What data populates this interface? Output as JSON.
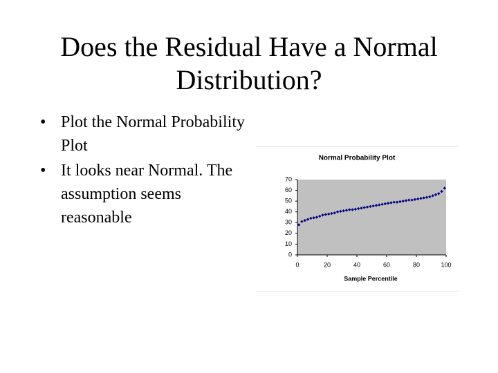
{
  "slide": {
    "title": "Does the Residual Have a Normal Distribution?",
    "bullets": [
      "Plot the Normal Probability Plot",
      "It looks near Normal. The assumption seems reasonable"
    ]
  },
  "chart_data": {
    "type": "scatter",
    "title": "Normal Probability Plot",
    "x_label": "Sample Percentile",
    "x": [
      1,
      3,
      5,
      7,
      9,
      11,
      13,
      15,
      17,
      19,
      21,
      23,
      25,
      27,
      29,
      31,
      33,
      35,
      37,
      39,
      41,
      43,
      45,
      47,
      49,
      51,
      53,
      55,
      57,
      59,
      61,
      63,
      65,
      67,
      69,
      71,
      73,
      75,
      77,
      79,
      81,
      83,
      85,
      87,
      89,
      91,
      93,
      95,
      97,
      99
    ],
    "values": [
      28,
      31,
      32,
      33,
      34,
      34.5,
      35,
      36,
      37,
      37.5,
      38,
      38.5,
      39,
      40,
      40.5,
      41,
      41.5,
      42,
      42,
      42.5,
      43,
      43.5,
      44,
      44.5,
      45,
      45.5,
      46,
      46.5,
      47,
      47.5,
      48,
      48.5,
      49,
      49,
      49.5,
      50,
      50.5,
      51,
      51,
      51.5,
      52,
      52.5,
      53,
      53.5,
      54,
      55,
      56,
      57,
      59,
      62
    ],
    "color": "#000080",
    "plot_background": "#c0c0c0",
    "xlim": [
      0,
      100
    ],
    "xticks": [
      0,
      20,
      40,
      60,
      80,
      100
    ],
    "ylim": [
      0,
      70
    ],
    "yticks": [
      0,
      10,
      20,
      30,
      40,
      50,
      60,
      70
    ]
  }
}
